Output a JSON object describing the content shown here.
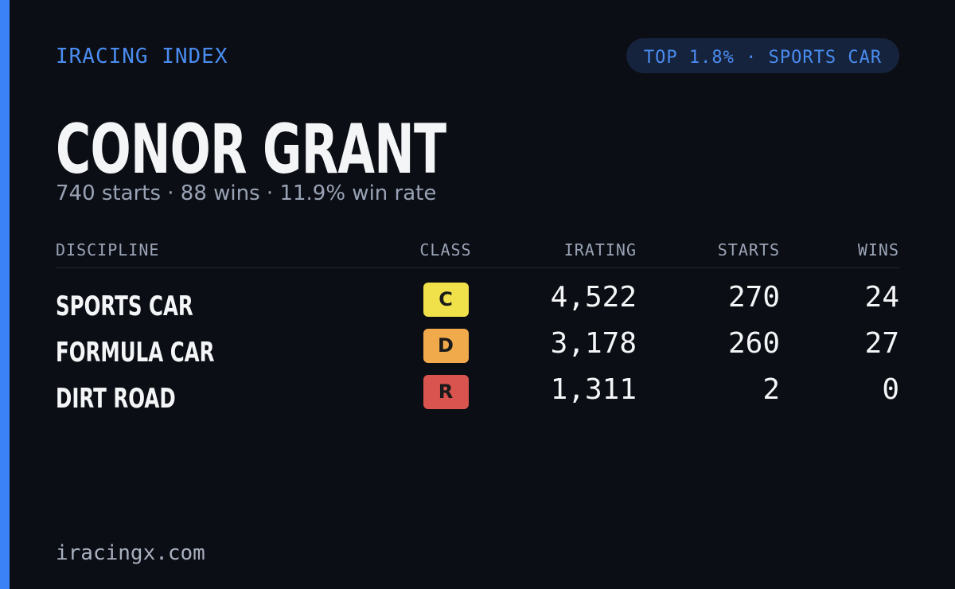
{
  "header": {
    "brand": "IRACING INDEX",
    "badge": "TOP 1.8% · SPORTS CAR"
  },
  "player": {
    "name": "CONOR GRANT",
    "summary": "740 starts · 88 wins · 11.9% win rate"
  },
  "table": {
    "columns": [
      "DISCIPLINE",
      "CLASS",
      "IRATING",
      "STARTS",
      "WINS"
    ],
    "rows": [
      [
        "SPORTS CAR",
        "C",
        "4,522",
        "270",
        "24"
      ],
      [
        "FORMULA CAR",
        "D",
        "3,178",
        "260",
        "27"
      ],
      [
        "DIRT ROAD",
        "R",
        "1,311",
        "2",
        "0"
      ]
    ]
  },
  "footer": {
    "site": "iracingx.com"
  }
}
